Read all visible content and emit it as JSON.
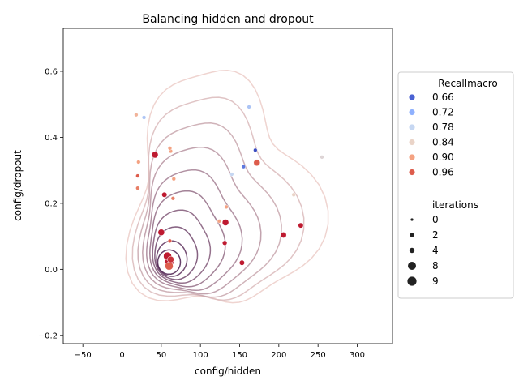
{
  "chart_data": {
    "type": "scatter",
    "title": "Balancing hidden and dropout",
    "xlabel": "config/hidden",
    "ylabel": "config/dropout",
    "xlim": [
      -75,
      345
    ],
    "ylim": [
      -0.225,
      0.73
    ],
    "xticks": [
      -50,
      0,
      50,
      100,
      150,
      200,
      250,
      300
    ],
    "yticks": [
      -0.2,
      0.0,
      0.2,
      0.4,
      0.6
    ],
    "xtick_labels": [
      "−50",
      "0",
      "50",
      "100",
      "150",
      "200",
      "250",
      "300"
    ],
    "ytick_labels": [
      "−0.2",
      "0.0",
      "0.2",
      "0.4",
      "0.6"
    ],
    "grid": false,
    "legend_position": "right",
    "hue_title": "Recallmacro",
    "hue_entries": [
      {
        "label": "0.66",
        "color": "#4a62d3"
      },
      {
        "label": "0.72",
        "color": "#8fb1fe"
      },
      {
        "label": "0.78",
        "color": "#c6d7f2"
      },
      {
        "label": "0.84",
        "color": "#ead4c8"
      },
      {
        "label": "0.90",
        "color": "#f4a282"
      },
      {
        "label": "0.96",
        "color": "#dd5c4c"
      }
    ],
    "size_title": "iterations",
    "size_entries": [
      {
        "label": "0",
        "size": 0
      },
      {
        "label": "2",
        "size": 2
      },
      {
        "label": "4",
        "size": 4
      },
      {
        "label": "8",
        "size": 8
      },
      {
        "label": "9",
        "size": 9
      }
    ],
    "kde_center": [
      60,
      0.022
    ],
    "kde_levels": 10,
    "points": [
      {
        "x": 60,
        "y": 0.022,
        "hue": 0.99,
        "iterations": 9
      },
      {
        "x": 58,
        "y": 0.04,
        "hue": 0.99,
        "iterations": 8
      },
      {
        "x": 60,
        "y": 0.01,
        "hue": 0.96,
        "iterations": 8
      },
      {
        "x": 62,
        "y": 0.03,
        "hue": 0.98,
        "iterations": 6
      },
      {
        "x": 50,
        "y": 0.112,
        "hue": 0.99,
        "iterations": 6
      },
      {
        "x": 42,
        "y": 0.347,
        "hue": 0.99,
        "iterations": 6
      },
      {
        "x": 172,
        "y": 0.323,
        "hue": 0.96,
        "iterations": 6
      },
      {
        "x": 132,
        "y": 0.142,
        "hue": 0.99,
        "iterations": 6
      },
      {
        "x": 206,
        "y": 0.104,
        "hue": 0.99,
        "iterations": 5
      },
      {
        "x": 228,
        "y": 0.133,
        "hue": 0.99,
        "iterations": 4
      },
      {
        "x": 153,
        "y": 0.02,
        "hue": 0.99,
        "iterations": 4
      },
      {
        "x": 54,
        "y": 0.226,
        "hue": 0.99,
        "iterations": 4
      },
      {
        "x": 131,
        "y": 0.08,
        "hue": 0.99,
        "iterations": 3
      },
      {
        "x": 61,
        "y": 0.086,
        "hue": 0.96,
        "iterations": 1
      },
      {
        "x": 65,
        "y": 0.215,
        "hue": 0.93,
        "iterations": 1
      },
      {
        "x": 66,
        "y": 0.274,
        "hue": 0.9,
        "iterations": 1
      },
      {
        "x": 62,
        "y": 0.358,
        "hue": 0.9,
        "iterations": 1
      },
      {
        "x": 61,
        "y": 0.367,
        "hue": 0.9,
        "iterations": 1
      },
      {
        "x": 20,
        "y": 0.283,
        "hue": 0.96,
        "iterations": 1
      },
      {
        "x": 20,
        "y": 0.246,
        "hue": 0.93,
        "iterations": 1
      },
      {
        "x": 21,
        "y": 0.325,
        "hue": 0.9,
        "iterations": 1
      },
      {
        "x": 18,
        "y": 0.468,
        "hue": 0.88,
        "iterations": 1
      },
      {
        "x": 28,
        "y": 0.46,
        "hue": 0.75,
        "iterations": 1
      },
      {
        "x": 124,
        "y": 0.146,
        "hue": 0.9,
        "iterations": 1
      },
      {
        "x": 133,
        "y": 0.189,
        "hue": 0.9,
        "iterations": 1
      },
      {
        "x": 140,
        "y": 0.288,
        "hue": 0.78,
        "iterations": 1
      },
      {
        "x": 155,
        "y": 0.311,
        "hue": 0.66,
        "iterations": 1
      },
      {
        "x": 170,
        "y": 0.361,
        "hue": 0.62,
        "iterations": 1
      },
      {
        "x": 162,
        "y": 0.492,
        "hue": 0.75,
        "iterations": 1
      },
      {
        "x": 219,
        "y": 0.226,
        "hue": 0.84,
        "iterations": 1
      },
      {
        "x": 255,
        "y": 0.34,
        "hue": 0.82,
        "iterations": 1
      }
    ]
  }
}
